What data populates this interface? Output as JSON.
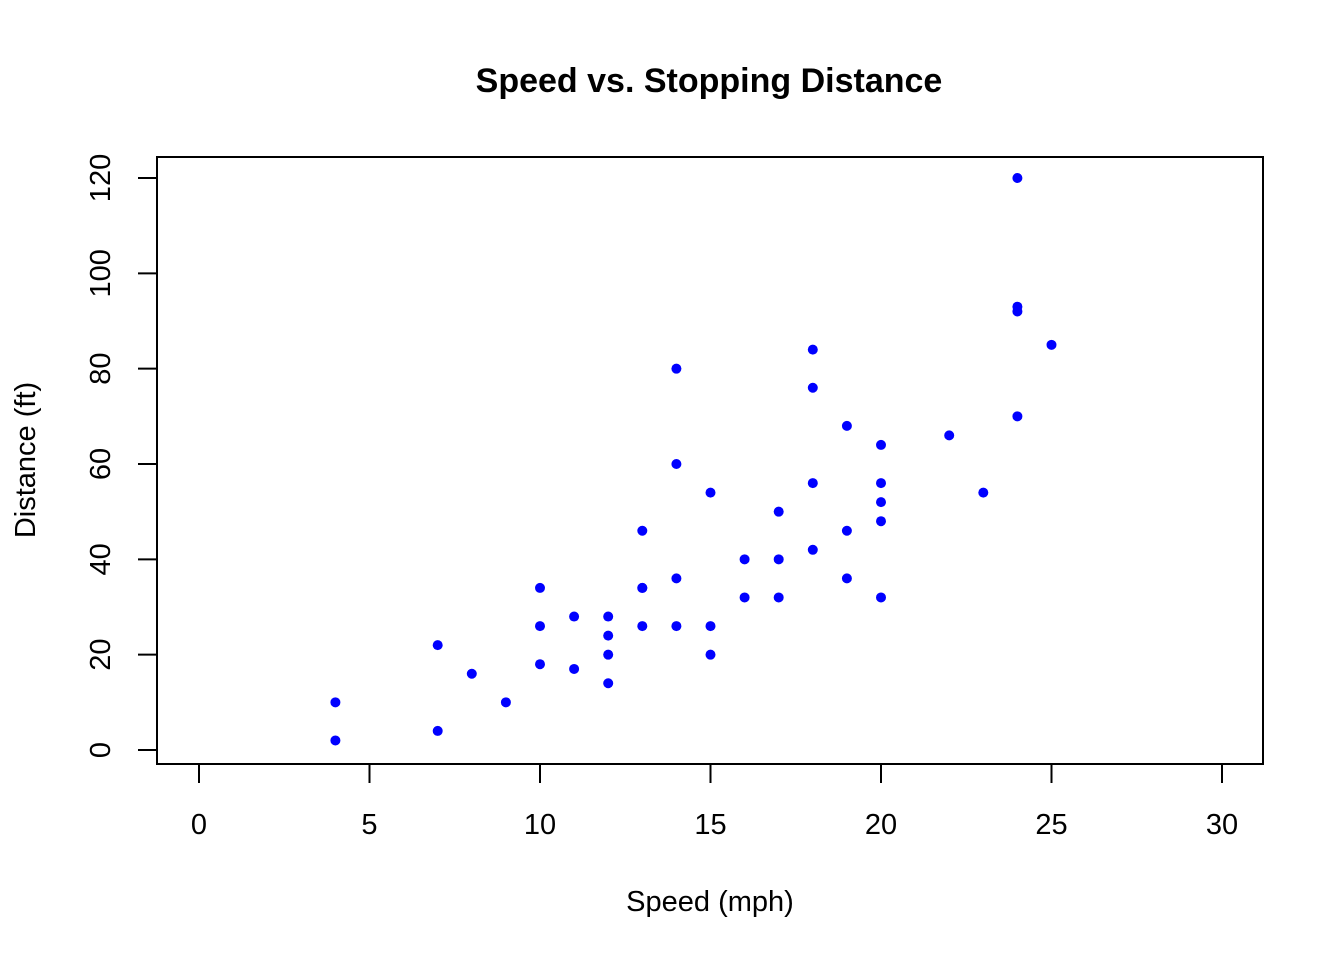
{
  "chart_data": {
    "type": "scatter",
    "title": "Speed vs. Stopping Distance",
    "xlabel": "Speed (mph)",
    "ylabel": "Distance (ft)",
    "xlim": [
      0,
      30
    ],
    "ylim": [
      0,
      120
    ],
    "xticks": [
      0,
      5,
      10,
      15,
      20,
      25,
      30
    ],
    "yticks": [
      0,
      20,
      40,
      60,
      80,
      100,
      120
    ],
    "grid": false,
    "point_color": "#0000FF",
    "series": [
      {
        "x": [
          4,
          4,
          7,
          7,
          8,
          9,
          10,
          10,
          10,
          11,
          11,
          12,
          12,
          12,
          12,
          13,
          13,
          13,
          13,
          14,
          14,
          14,
          14,
          15,
          15,
          15,
          16,
          16,
          17,
          17,
          17,
          18,
          18,
          18,
          18,
          19,
          19,
          19,
          20,
          20,
          20,
          20,
          20,
          22,
          23,
          24,
          24,
          24,
          24,
          25
        ],
        "y": [
          2,
          10,
          4,
          22,
          16,
          10,
          18,
          26,
          34,
          17,
          28,
          14,
          20,
          24,
          28,
          26,
          34,
          34,
          46,
          26,
          36,
          60,
          80,
          20,
          26,
          54,
          32,
          40,
          32,
          40,
          50,
          42,
          56,
          76,
          84,
          36,
          46,
          68,
          32,
          48,
          52,
          56,
          64,
          66,
          54,
          70,
          92,
          93,
          120,
          85
        ]
      }
    ]
  }
}
